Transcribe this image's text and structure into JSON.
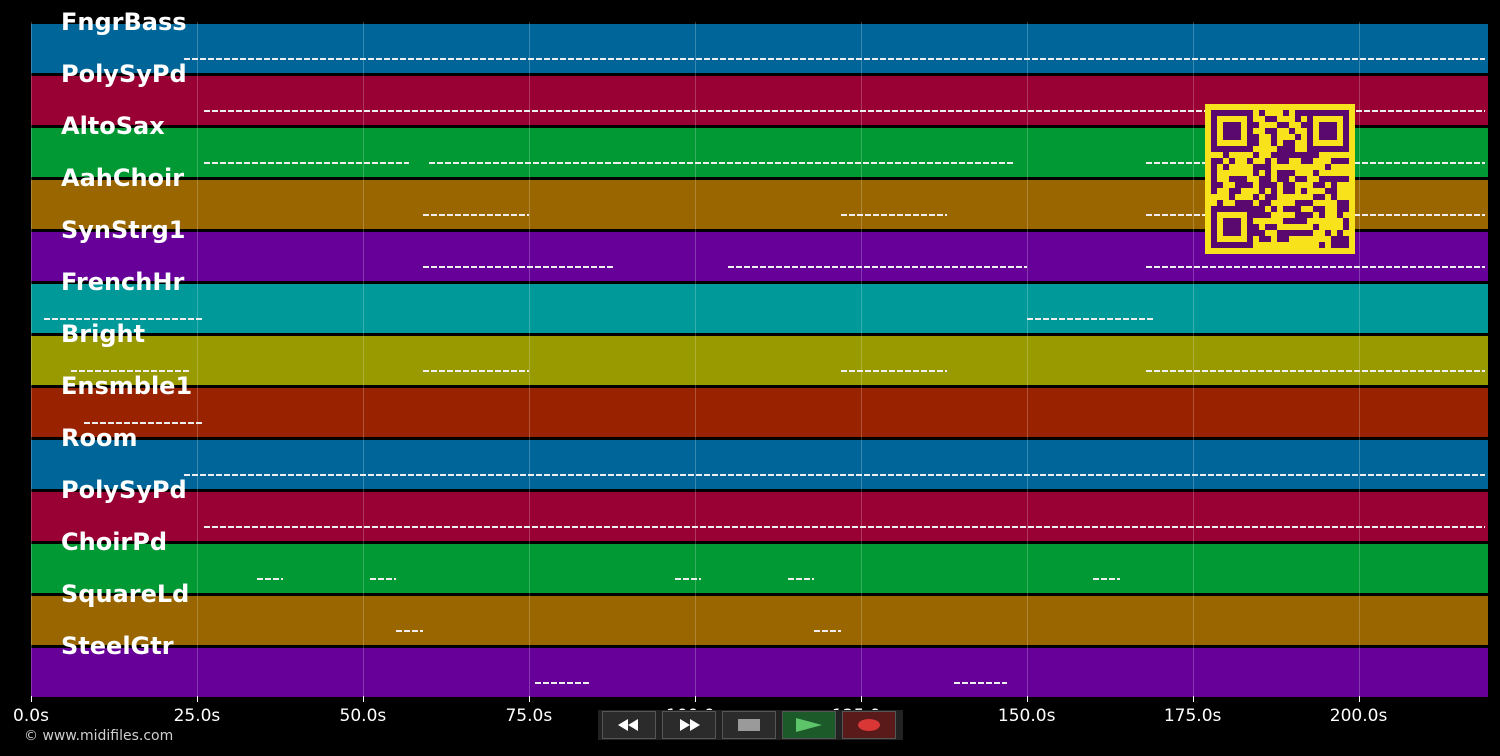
{
  "tracks": [
    {
      "name": "FngrBass",
      "color": "#006699"
    },
    {
      "name": "PolySyPd",
      "color": "#990033"
    },
    {
      "name": "AltoSax",
      "color": "#009933"
    },
    {
      "name": "AahChoir",
      "color": "#996600"
    },
    {
      "name": "SynStrg1",
      "color": "#660099"
    },
    {
      "name": "FrenchHr",
      "color": "#009999"
    },
    {
      "name": "Bright",
      "color": "#999900"
    },
    {
      "name": "Ensmble1",
      "color": "#992200"
    },
    {
      "name": "Room",
      "color": "#006699"
    },
    {
      "name": "PolySyPd",
      "color": "#990033"
    },
    {
      "name": "ChoirPd",
      "color": "#009933"
    },
    {
      "name": "SquareLd",
      "color": "#996600"
    },
    {
      "name": "SteelGtr",
      "color": "#660099"
    }
  ],
  "timeline": {
    "ticks": [
      "0.0s",
      "25.0s",
      "50.0s",
      "75.0s",
      "100.0s",
      "125.0s",
      "150.0s",
      "175.0s",
      "200.0s"
    ],
    "tick_values": [
      0,
      25,
      50,
      75,
      100,
      125,
      150,
      175,
      200
    ],
    "max_seconds": 219.5
  },
  "transport": {
    "rewind_icon": "rewind-icon",
    "fast_forward_icon": "fast-forward-icon",
    "stop_icon": "stop-icon",
    "play_icon": "play-icon",
    "record_icon": "record-icon"
  },
  "footer": {
    "copyright": "© www.midifiles.com"
  },
  "overlay": {
    "qr_icon": "qr-code-icon",
    "qr_color": "#f7e21c",
    "qr_dark": "#5a0a6e"
  }
}
